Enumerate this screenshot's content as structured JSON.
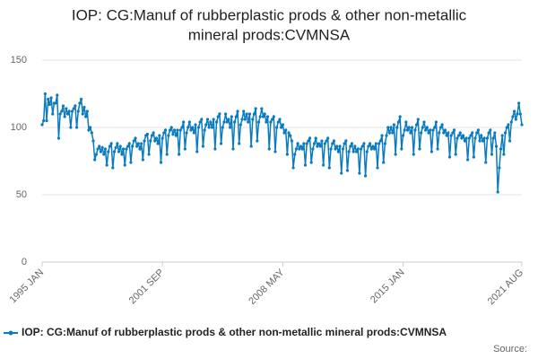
{
  "chart_data": {
    "type": "line",
    "title_lines": [
      "IOP: CG:Manuf of rubberplastic prods & other non-metallic",
      "mineral prods:CVMNSA"
    ],
    "source": "Source:",
    "color": "#0a7bc0",
    "ylim": [
      0,
      150
    ],
    "yticks": [
      0,
      50,
      100,
      150
    ],
    "grid": true,
    "categories": [
      "1995 JAN",
      null,
      null,
      null,
      null,
      null,
      null,
      null,
      null,
      null,
      null,
      null,
      null,
      null,
      null,
      null,
      null,
      null,
      null,
      null,
      null,
      null,
      null,
      null,
      null,
      null,
      null,
      null,
      null,
      null,
      null,
      null,
      null,
      null,
      null,
      null,
      null,
      null,
      null,
      null,
      null,
      null,
      null,
      null,
      null,
      null,
      null,
      null,
      null,
      null,
      null,
      null,
      null,
      null,
      null,
      null,
      null,
      null,
      null,
      null,
      null,
      null,
      null,
      null,
      null,
      null,
      null,
      null,
      null,
      null,
      null,
      null,
      null,
      null,
      null,
      null,
      null,
      null,
      null,
      null,
      "2001 SEP",
      null,
      null,
      null,
      null,
      null,
      null,
      null,
      null,
      null,
      null,
      null,
      null,
      null,
      null,
      null,
      null,
      null,
      null,
      null,
      null,
      null,
      null,
      null,
      null,
      null,
      null,
      null,
      null,
      null,
      null,
      null,
      null,
      null,
      null,
      null,
      null,
      null,
      null,
      null,
      null,
      null,
      null,
      null,
      null,
      null,
      null,
      null,
      null,
      null,
      null,
      null,
      null,
      null,
      null,
      null,
      null,
      null,
      null,
      null,
      null,
      null,
      null,
      null,
      null,
      null,
      null,
      null,
      null,
      null,
      null,
      null,
      null,
      null,
      null,
      null,
      null,
      null,
      null,
      null,
      "2008 MAY",
      null,
      null,
      null,
      null,
      null,
      null,
      null,
      null,
      null,
      null,
      null,
      null,
      null,
      null,
      null,
      null,
      null,
      null,
      null,
      null,
      null,
      null,
      null,
      null,
      null,
      null,
      null,
      null,
      null,
      null,
      null,
      null,
      null,
      null,
      null,
      null,
      null,
      null,
      null,
      null,
      null,
      null,
      null,
      null,
      null,
      null,
      null,
      null,
      null,
      null,
      null,
      null,
      null,
      null,
      null,
      null,
      null,
      null,
      null,
      null,
      null,
      null,
      null,
      null,
      null,
      null,
      null,
      null,
      null,
      null,
      null,
      null,
      null,
      null,
      null,
      null,
      null,
      null,
      null,
      "2015 JAN",
      null,
      null,
      null,
      null,
      null,
      null,
      null,
      null,
      null,
      null,
      null,
      null,
      null,
      null,
      null,
      null,
      null,
      null,
      null,
      null,
      null,
      null,
      null,
      null,
      null,
      null,
      null,
      null,
      null,
      null,
      null,
      null,
      null,
      null,
      null,
      null,
      null,
      null,
      null,
      null,
      null,
      null,
      null,
      null,
      null,
      null,
      null,
      null,
      null,
      null,
      null,
      null,
      null,
      null,
      null,
      null,
      null,
      null,
      null,
      null,
      null,
      null,
      null,
      null,
      null,
      null,
      null,
      null,
      null,
      null,
      null,
      null,
      null,
      null,
      null,
      null,
      null,
      null,
      "2021 AUG"
    ],
    "series": [
      {
        "name": "IOP: CG:Manuf of rubberplastic prods & other non-metallic mineral prods:CVMNSA",
        "color": "#0a7bc0",
        "values": [
          102,
          105,
          125,
          105,
          121,
          117,
          122,
          110,
          118,
          118,
          124,
          92,
          110,
          112,
          116,
          108,
          114,
          110,
          112,
          100,
          112,
          114,
          116,
          100,
          112,
          118,
          121,
          110,
          115,
          108,
          112,
          98,
          100,
          96,
          90,
          76,
          80,
          84,
          86,
          82,
          85,
          80,
          84,
          72,
          82,
          86,
          88,
          70,
          82,
          85,
          88,
          82,
          86,
          80,
          84,
          72,
          84,
          86,
          88,
          74,
          86,
          90,
          92,
          86,
          88,
          84,
          88,
          76,
          90,
          94,
          95,
          80,
          90,
          94,
          96,
          90,
          92,
          88,
          94,
          74,
          92,
          96,
          98,
          80,
          94,
          98,
          100,
          95,
          98,
          94,
          98,
          80,
          98,
          100,
          104,
          84,
          96,
          100,
          104,
          98,
          100,
          96,
          102,
          82,
          100,
          104,
          106,
          86,
          98,
          102,
          106,
          100,
          104,
          100,
          106,
          84,
          104,
          108,
          110,
          88,
          100,
          104,
          110,
          104,
          106,
          100,
          108,
          84,
          104,
          108,
          112,
          88,
          102,
          106,
          112,
          106,
          110,
          104,
          110,
          86,
          106,
          110,
          114,
          90,
          104,
          108,
          114,
          108,
          110,
          104,
          108,
          84,
          104,
          106,
          108,
          82,
          100,
          104,
          106,
          100,
          102,
          96,
          98,
          80,
          96,
          94,
          90,
          70,
          80,
          84,
          88,
          84,
          86,
          84,
          88,
          72,
          88,
          90,
          92,
          74,
          84,
          88,
          92,
          86,
          88,
          86,
          90,
          72,
          88,
          90,
          92,
          70,
          84,
          88,
          90,
          84,
          86,
          82,
          86,
          66,
          84,
          88,
          90,
          68,
          82,
          86,
          88,
          82,
          86,
          82,
          84,
          66,
          84,
          86,
          88,
          64,
          82,
          86,
          88,
          84,
          86,
          84,
          88,
          70,
          88,
          90,
          94,
          74,
          88,
          94,
          100,
          96,
          100,
          96,
          102,
          80,
          100,
          104,
          108,
          84,
          94,
          98,
          104,
          98,
          100,
          96,
          100,
          80,
          98,
          102,
          106,
          84,
          96,
          100,
          104,
          98,
          100,
          96,
          98,
          82,
          98,
          100,
          104,
          84,
          96,
          100,
          102,
          96,
          98,
          94,
          96,
          78,
          94,
          96,
          98,
          80,
          92,
          94,
          96,
          92,
          94,
          90,
          92,
          76,
          92,
          94,
          96,
          78,
          92,
          96,
          98,
          90,
          94,
          90,
          92,
          74,
          92,
          96,
          98,
          80,
          92,
          96,
          86,
          52,
          70,
          84,
          94,
          80,
          96,
          100,
          102,
          90,
          104,
          108,
          112,
          106,
          110,
          118,
          110,
          102
        ]
      }
    ]
  }
}
